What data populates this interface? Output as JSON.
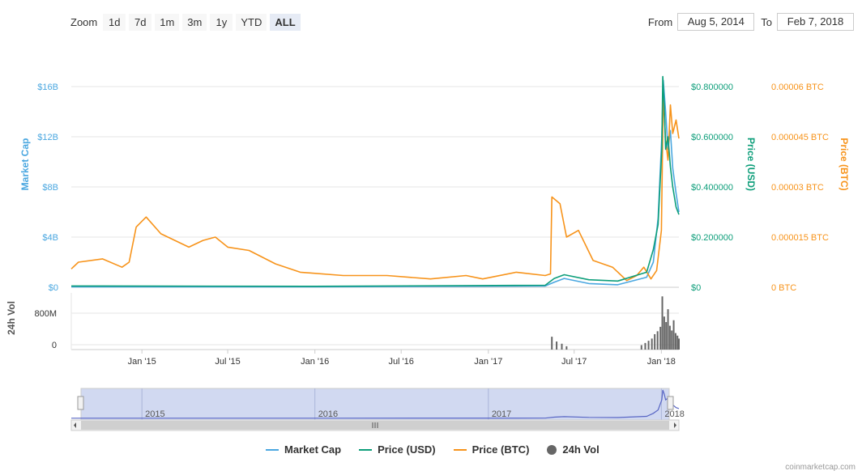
{
  "toolbar": {
    "zoom_label": "Zoom",
    "buttons": [
      "1d",
      "7d",
      "1m",
      "3m",
      "1y",
      "YTD",
      "ALL"
    ],
    "active": "ALL",
    "from_label": "From",
    "from_value": "Aug 5, 2014",
    "to_label": "To",
    "to_value": "Feb 7, 2018"
  },
  "colors": {
    "market_cap": "#4aa7e0",
    "price_usd": "#0d9e7a",
    "price_btc": "#f7931a",
    "volume": "#666666",
    "navigator_fill": "#c9d2ef",
    "navigator_line": "#5866c4"
  },
  "chart_data": {
    "type": "line",
    "x_range": [
      "2014-08-05",
      "2018-02-07"
    ],
    "x_tick_labels": [
      "Jan '15",
      "Jul '15",
      "Jan '16",
      "Jul '16",
      "Jan '17",
      "Jul '17",
      "Jan '18"
    ],
    "axes": {
      "market_cap": {
        "title": "Market Cap",
        "ticks": [
          "$0",
          "$4B",
          "$8B",
          "$12B",
          "$16B"
        ],
        "range": [
          0,
          16000000000
        ]
      },
      "price_usd": {
        "title": "Price (USD)",
        "ticks": [
          "$0",
          "$0.200000",
          "$0.400000",
          "$0.600000",
          "$0.800000"
        ],
        "range": [
          0,
          0.8
        ]
      },
      "price_btc": {
        "title": "Price (BTC)",
        "ticks": [
          "0 BTC",
          "0.000015 BTC",
          "0.00003 BTC",
          "0.000045 BTC",
          "0.00006 BTC"
        ],
        "range": [
          0,
          6e-05
        ]
      },
      "volume": {
        "title": "24h Vol",
        "ticks": [
          "0",
          "800M"
        ],
        "range": [
          0,
          1500000000
        ]
      }
    },
    "series": [
      {
        "name": "Market Cap",
        "x": [
          "2014-08-05",
          "2016-01-01",
          "2017-05-01",
          "2017-05-20",
          "2017-06-10",
          "2017-08-01",
          "2017-10-01",
          "2017-12-01",
          "2017-12-15",
          "2017-12-25",
          "2018-01-02",
          "2018-01-05",
          "2018-01-10",
          "2018-01-15",
          "2018-01-20",
          "2018-01-25",
          "2018-02-01",
          "2018-02-07"
        ],
        "values": [
          30000000,
          40000000,
          100000000,
          400000000,
          700000000,
          300000000,
          200000000,
          800000000,
          2000000000,
          5500000000,
          12000000000,
          16500000000,
          14000000000,
          11000000000,
          12500000000,
          9500000000,
          7500000000,
          6000000000
        ]
      },
      {
        "name": "Price (USD)",
        "x": [
          "2014-08-05",
          "2016-01-01",
          "2017-05-01",
          "2017-05-20",
          "2017-06-10",
          "2017-08-01",
          "2017-10-01",
          "2017-12-01",
          "2017-12-15",
          "2017-12-25",
          "2018-01-02",
          "2018-01-04",
          "2018-01-07",
          "2018-01-10",
          "2018-01-15",
          "2018-01-20",
          "2018-01-25",
          "2018-02-01",
          "2018-02-07"
        ],
        "values": [
          0.005,
          0.004,
          0.008,
          0.035,
          0.05,
          0.03,
          0.025,
          0.06,
          0.15,
          0.25,
          0.55,
          0.84,
          0.72,
          0.55,
          0.6,
          0.48,
          0.4,
          0.32,
          0.29
        ]
      },
      {
        "name": "Price (BTC)",
        "x": [
          "2014-08-05",
          "2014-08-20",
          "2014-10-10",
          "2014-11-20",
          "2014-12-05",
          "2014-12-20",
          "2015-01-10",
          "2015-02-10",
          "2015-04-10",
          "2015-05-10",
          "2015-06-05",
          "2015-07-01",
          "2015-08-15",
          "2015-10-10",
          "2015-12-01",
          "2016-03-01",
          "2016-06-01",
          "2016-09-01",
          "2016-11-15",
          "2016-12-20",
          "2017-03-01",
          "2017-05-01",
          "2017-05-12",
          "2017-05-15",
          "2017-06-01",
          "2017-06-15",
          "2017-07-10",
          "2017-08-10",
          "2017-09-20",
          "2017-10-20",
          "2017-11-10",
          "2017-11-25",
          "2017-12-10",
          "2017-12-22",
          "2018-01-01",
          "2018-01-05",
          "2018-01-10",
          "2018-01-15",
          "2018-01-20",
          "2018-01-25",
          "2018-02-01",
          "2018-02-07"
        ],
        "values": [
          5.5e-06,
          7.5e-06,
          8.5e-06,
          6e-06,
          7.5e-06,
          1.8e-05,
          2.1e-05,
          1.6e-05,
          1.2e-05,
          1.4e-05,
          1.5e-05,
          1.2e-05,
          1.1e-05,
          7e-06,
          4.5e-06,
          3.5e-06,
          3.5e-06,
          2.5e-06,
          3.5e-06,
          2.5e-06,
          4.5e-06,
          3.5e-06,
          4e-06,
          2.7e-05,
          2.5e-05,
          1.5e-05,
          1.7e-05,
          8e-06,
          6e-06,
          2e-06,
          3.5e-06,
          6e-06,
          2.5e-06,
          5e-06,
          1.7e-05,
          5.75e-05,
          4.4e-05,
          3.8e-05,
          5.45e-05,
          4.6e-05,
          5e-05,
          4.45e-05
        ]
      },
      {
        "name": "24h Vol",
        "x": [
          "2017-05-15",
          "2017-05-25",
          "2017-06-05",
          "2017-06-15",
          "2017-11-20",
          "2017-11-28",
          "2017-12-05",
          "2017-12-12",
          "2017-12-18",
          "2017-12-24",
          "2017-12-30",
          "2018-01-03",
          "2018-01-07",
          "2018-01-11",
          "2018-01-15",
          "2018-01-19",
          "2018-01-23",
          "2018-01-27",
          "2018-01-31",
          "2018-02-04",
          "2018-02-07"
        ],
        "values": [
          350000000,
          220000000,
          160000000,
          90000000,
          120000000,
          180000000,
          240000000,
          300000000,
          420000000,
          500000000,
          620000000,
          1450000000,
          900000000,
          750000000,
          1100000000,
          650000000,
          520000000,
          800000000,
          450000000,
          380000000,
          300000000
        ]
      }
    ],
    "navigator": {
      "labels": [
        "2015",
        "2016",
        "2017",
        "2018"
      ]
    }
  },
  "legend": {
    "items": [
      {
        "label": "Market Cap",
        "kind": "line",
        "color": "#4aa7e0"
      },
      {
        "label": "Price (USD)",
        "kind": "line",
        "color": "#0d9e7a"
      },
      {
        "label": "Price (BTC)",
        "kind": "line",
        "color": "#f7931a"
      },
      {
        "label": "24h Vol",
        "kind": "dot",
        "color": "#666666"
      }
    ]
  },
  "credits": "coinmarketcap.com"
}
